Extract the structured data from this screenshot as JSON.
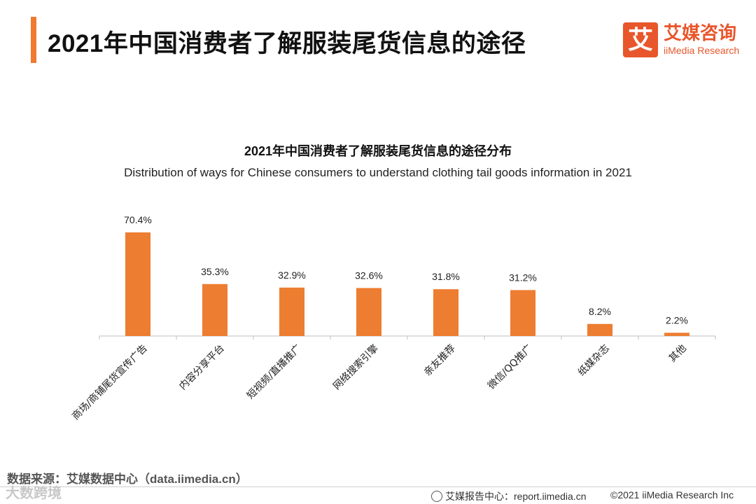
{
  "header": {
    "title": "2021年中国消费者了解服装尾货信息的途径",
    "logo_mark": "艾",
    "logo_cn": "艾媒咨询",
    "logo_en": "iiMedia Research"
  },
  "colors": {
    "accent": "#ef7a30",
    "bar": "#ed7d31",
    "brand": "#e8562b"
  },
  "chart_data": {
    "type": "bar",
    "title": "2021年中国消费者了解服装尾货信息的途径分布",
    "subtitle": "Distribution of ways for Chinese consumers to understand clothing tail goods information in 2021",
    "categories": [
      "商场/商铺尾货宣传广告",
      "内容分享平台",
      "短视频/直播推广",
      "网络搜索引擎",
      "亲友推荐",
      "微信/QQ推广",
      "纸媒杂志",
      "其他"
    ],
    "values": [
      70.4,
      35.3,
      32.9,
      32.6,
      31.8,
      31.2,
      8.2,
      2.2
    ],
    "value_labels": [
      "70.4%",
      "35.3%",
      "32.9%",
      "32.6%",
      "31.8%",
      "31.2%",
      "8.2%",
      "2.2%"
    ],
    "xlabel": "",
    "ylabel": "",
    "ylim": [
      0,
      70.4
    ],
    "grid": false,
    "legend": "none"
  },
  "footer": {
    "source": "数据来源：艾媒数据中心（data.iimedia.cn）",
    "watermark": "大数跨境",
    "report": "艾媒报告中心：report.iimedia.cn",
    "copyright": "©2021  iiMedia Research  Inc"
  }
}
